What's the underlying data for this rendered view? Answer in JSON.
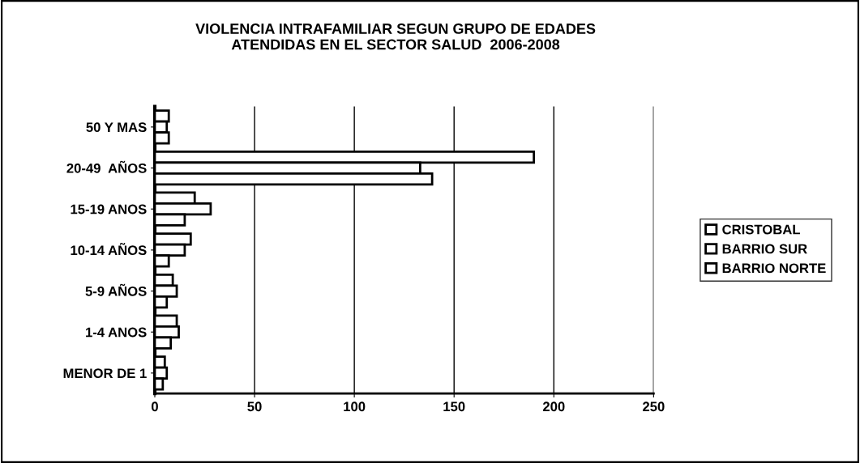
{
  "chart_data": {
    "type": "bar",
    "orientation": "horizontal",
    "title": "VIOLENCIA INTRAFAMILIAR SEGUN GRUPO DE EDADES\nATENDIDAS EN EL SECTOR SALUD  2006-2008",
    "categories": [
      "50 Y MAS",
      "20-49  AÑOS",
      "15-19 ANOS",
      "10-14 AÑOS",
      "5-9 AÑOS",
      "1-4 ANOS",
      "MENOR DE 1"
    ],
    "series": [
      {
        "name": "CRISTOBAL",
        "color": "#ffffff",
        "values": [
          7,
          190,
          20,
          18,
          9,
          11,
          5
        ]
      },
      {
        "name": "BARRIO SUR",
        "color": "#ffffff",
        "values": [
          6,
          133,
          28,
          15,
          11,
          12,
          6
        ]
      },
      {
        "name": "BARRIO NORTE",
        "color": "#ffffff",
        "values": [
          7,
          139,
          15,
          7,
          6,
          8,
          4
        ]
      }
    ],
    "xlim": [
      0,
      250
    ],
    "xticks": [
      0,
      50,
      100,
      150,
      200,
      250
    ],
    "grid": "x",
    "legend": "right"
  }
}
